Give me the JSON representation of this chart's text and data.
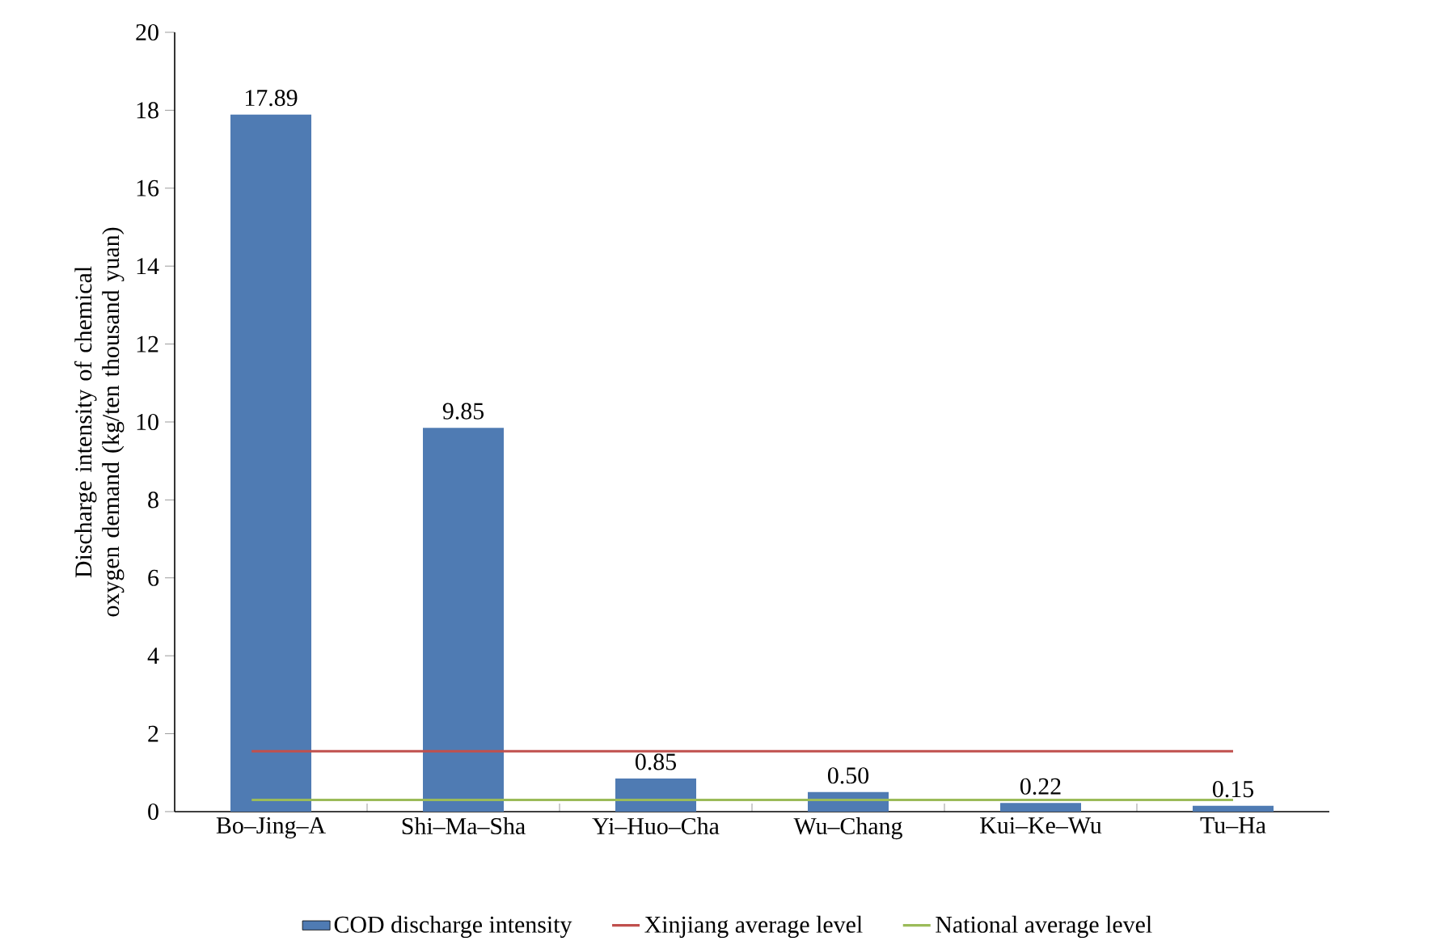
{
  "chart_data": {
    "type": "bar",
    "ylabel": "Discharge intensity of chemical oxygen demand (kg/ten thousand yuan)",
    "categories": [
      "Bo–Jing–A",
      "Shi–Ma–Sha",
      "Yi–Huo–Cha",
      "Wu–Chang",
      "Kui–Ke–Wu",
      "Tu–Ha"
    ],
    "series": [
      {
        "name": "COD discharge intensity",
        "color": "#4f7bb3",
        "values": [
          17.89,
          9.85,
          0.85,
          0.5,
          0.22,
          0.15
        ],
        "value_labels": [
          "17.89",
          "9.85",
          "0.85",
          "0.50",
          "0.22",
          "0.15"
        ]
      }
    ],
    "ref_lines": [
      {
        "axis": "y",
        "value": 1.55,
        "label": "Xinjiang average level",
        "color": "#c0504d"
      },
      {
        "axis": "y",
        "value": 0.3,
        "label": "National average level",
        "color": "#9bbb59"
      }
    ],
    "ylim": [
      0,
      20
    ],
    "yticks": [
      0,
      2,
      4,
      6,
      8,
      10,
      12,
      14,
      16,
      18,
      20
    ],
    "grid": false,
    "legend": "bottom"
  }
}
